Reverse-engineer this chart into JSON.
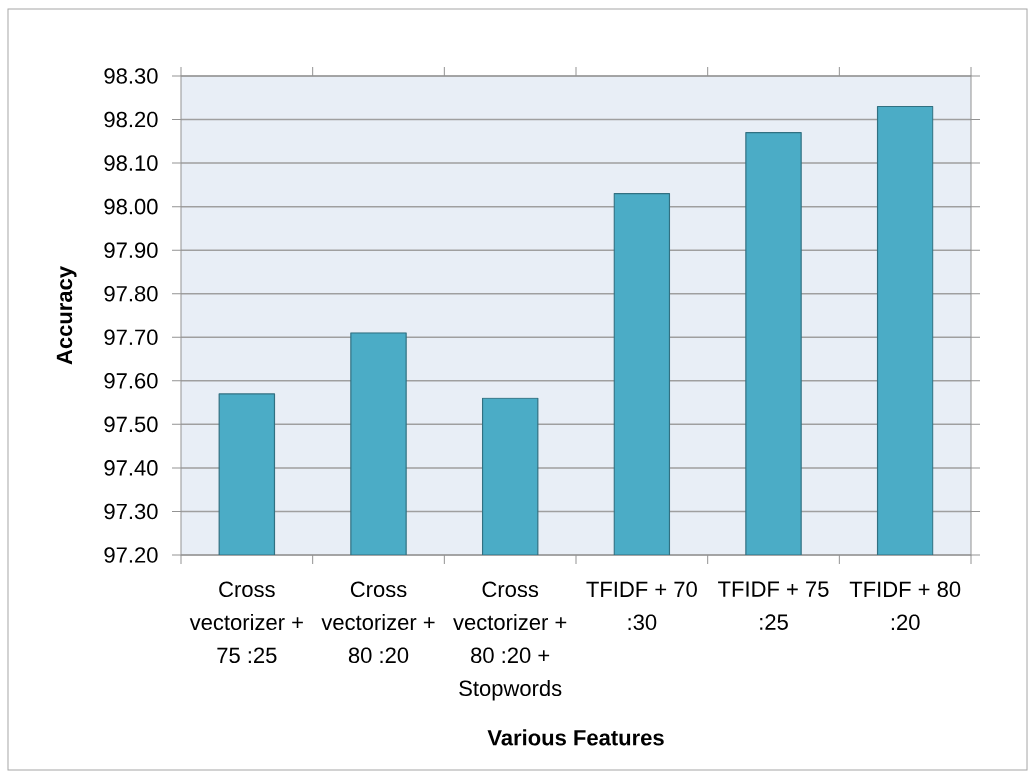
{
  "chart_data": {
    "type": "bar",
    "xlabel": "Various Features",
    "ylabel": "Accuracy",
    "categories": [
      "Cross vectorizer + 75 :25",
      "Cross vectorizer + 80 :20",
      "Cross vectorizer + 80 :20 + Stopwords",
      "TFIDF + 70 :30",
      "TFIDF + 75 :25",
      "TFIDF + 80 :20"
    ],
    "values": [
      97.57,
      97.71,
      97.56,
      98.03,
      98.17,
      98.23
    ],
    "color": "#4bacc6",
    "ylim": [
      97.2,
      98.3
    ],
    "yticks": [
      {
        "value": 97.2,
        "label": "97.20"
      },
      {
        "value": 97.3,
        "label": "97.30"
      },
      {
        "value": 97.4,
        "label": "97.40"
      },
      {
        "value": 97.5,
        "label": "97.50"
      },
      {
        "value": 97.6,
        "label": "97.60"
      },
      {
        "value": 97.7,
        "label": "97.70"
      },
      {
        "value": 97.8,
        "label": "97.80"
      },
      {
        "value": 97.9,
        "label": "97.90"
      },
      {
        "value": 98.0,
        "label": "98.00"
      },
      {
        "value": 98.1,
        "label": "98.10"
      },
      {
        "value": 98.2,
        "label": "98.20"
      },
      {
        "value": 98.3,
        "label": "98.30"
      }
    ],
    "grid": "y"
  }
}
